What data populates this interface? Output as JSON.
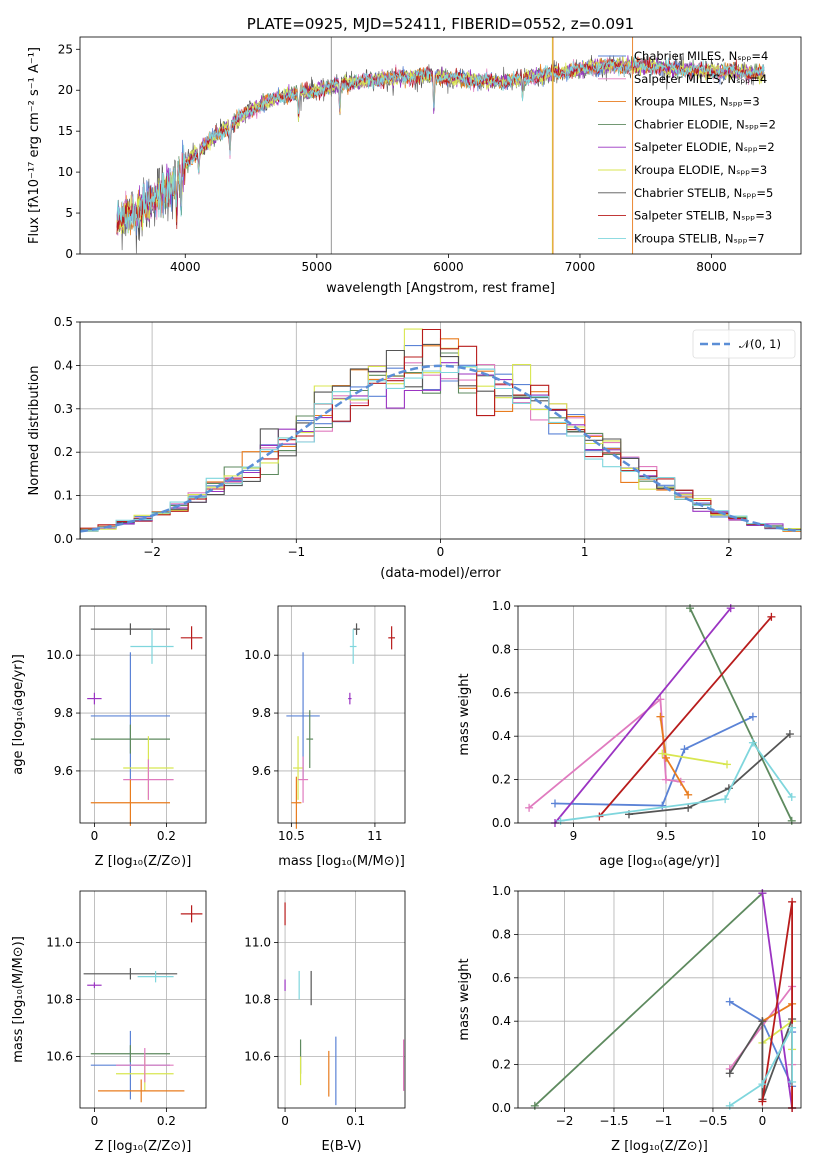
{
  "chart_data": [
    {
      "id": "spectrum",
      "type": "line",
      "title": "PLATE=0925, MJD=52411, FIBERID=0552, z=0.091",
      "xlabel": "wavelength [Angstrom, rest frame]",
      "ylabel": "Flux [fλ10⁻¹⁷ erg cm⁻² s⁻¹ A⁻¹]",
      "xlim": [
        3200,
        8680
      ],
      "ylim": [
        0,
        26.5
      ],
      "xticks": [
        4000,
        5000,
        6000,
        7000,
        8000
      ],
      "yticks": [
        0,
        5,
        10,
        15,
        20,
        25
      ],
      "grid": false,
      "legend_position": "top-right",
      "series": [
        {
          "name": "Chabrier MILES, Nₛₚₚ=4",
          "color": "#5b83d6"
        },
        {
          "name": "Salpeter MILES, Nₛₚₚ=4",
          "color": "#e07bbf"
        },
        {
          "name": "Kroupa MILES, Nₛₚₚ=3",
          "color": "#e87c1e"
        },
        {
          "name": "Chabrier ELODIE, Nₛₚₚ=2",
          "color": "#5e8a5f"
        },
        {
          "name": "Salpeter ELODIE, Nₛₚₚ=2",
          "color": "#9b34c2"
        },
        {
          "name": "Kroupa ELODIE, Nₛₚₚ=3",
          "color": "#d8e650"
        },
        {
          "name": "Chabrier STELIB, Nₛₚₚ=5",
          "color": "#555555"
        },
        {
          "name": "Salpeter STELIB, Nₛₚₚ=3",
          "color": "#b81c1c"
        },
        {
          "name": "Kroupa STELIB, Nₛₚₚ=7",
          "color": "#7fd6dd"
        }
      ],
      "continuum": {
        "x": [
          3500,
          3700,
          3900,
          4000,
          4200,
          4400,
          4600,
          4800,
          5000,
          5200,
          5400,
          5600,
          5800,
          6000,
          6200,
          6400,
          6600,
          6800,
          7000,
          7200,
          7400,
          7600,
          7800,
          8000,
          8200,
          8400
        ],
        "y": [
          4,
          6,
          8.5,
          11,
          14,
          16.5,
          18.5,
          19.5,
          20,
          20.8,
          21.2,
          21.5,
          21.8,
          21.5,
          21.2,
          21,
          21.5,
          22,
          22.5,
          23,
          23,
          22.8,
          22.5,
          22.3,
          22.2,
          22
        ]
      }
    },
    {
      "id": "residuals",
      "type": "histogram",
      "xlabel": "(data-model)/error",
      "ylabel": "Normed distribution",
      "xlim": [
        -2.5,
        2.5
      ],
      "ylim": [
        0,
        0.5
      ],
      "xticks": [
        -2,
        -1,
        0,
        1,
        2
      ],
      "yticks": [
        0.0,
        0.1,
        0.2,
        0.3,
        0.4,
        0.5
      ],
      "grid": true,
      "legend": "𝒩(0, 1)",
      "legend_position": "top-right",
      "reference_curve": {
        "type": "gaussian",
        "mean": 0,
        "sigma": 1,
        "color": "#5b8ed6"
      }
    },
    {
      "id": "age-vs-Z",
      "type": "scatter",
      "xlabel": "Z [log₁₀(Z/Z⊙)]",
      "ylabel": "age  [log₁₀(age/yr)]",
      "xlim": [
        -0.04,
        0.31
      ],
      "ylim": [
        9.42,
        10.17
      ],
      "xticks": [
        0.0,
        0.2
      ],
      "yticks": [
        9.6,
        9.8,
        10.0
      ],
      "grid": true,
      "points": [
        {
          "x": 0.1,
          "y": 10.09,
          "xerr": 0.11,
          "yerr": 0.02,
          "color": "#555555"
        },
        {
          "x": 0.27,
          "y": 10.06,
          "xerr": 0.03,
          "yerr": 0.04,
          "color": "#b81c1c"
        },
        {
          "x": 0.16,
          "y": 10.03,
          "xerr": 0.06,
          "yerr": 0.06,
          "color": "#7fd6dd"
        },
        {
          "x": 0.0,
          "y": 9.85,
          "xerr": 0.02,
          "yerr": 0.02,
          "color": "#9b34c2"
        },
        {
          "x": 0.1,
          "y": 9.79,
          "xerr": 0.11,
          "yerr": 0.22,
          "color": "#5b83d6"
        },
        {
          "x": 0.1,
          "y": 9.71,
          "xerr": 0.11,
          "yerr": 0.05,
          "color": "#5e8a5f"
        },
        {
          "x": 0.15,
          "y": 9.61,
          "xerr": 0.07,
          "yerr": 0.11,
          "color": "#d8e650"
        },
        {
          "x": 0.15,
          "y": 9.57,
          "xerr": 0.07,
          "yerr": 0.07,
          "color": "#e07bbf"
        },
        {
          "x": 0.1,
          "y": 9.49,
          "xerr": 0.11,
          "yerr": 0.08,
          "color": "#e87c1e"
        }
      ]
    },
    {
      "id": "age-vs-mass",
      "type": "scatter",
      "xlabel": "mass [log₁₀(M/M⊙)]",
      "ylim": [
        9.42,
        10.17
      ],
      "xlim": [
        10.42,
        11.18
      ],
      "xticks": [
        10.5,
        11.0
      ],
      "yticks": [
        9.6,
        9.8,
        10.0
      ],
      "grid": true,
      "points": [
        {
          "x": 10.89,
          "y": 10.09,
          "xerr": 0.02,
          "yerr": 0.02,
          "color": "#555555"
        },
        {
          "x": 11.1,
          "y": 10.06,
          "xerr": 0.02,
          "yerr": 0.04,
          "color": "#b81c1c"
        },
        {
          "x": 10.87,
          "y": 10.03,
          "xerr": 0.02,
          "yerr": 0.06,
          "color": "#7fd6dd"
        },
        {
          "x": 10.85,
          "y": 9.85,
          "xerr": 0.01,
          "yerr": 0.02,
          "color": "#9b34c2"
        },
        {
          "x": 10.57,
          "y": 9.79,
          "xerr": 0.1,
          "yerr": 0.22,
          "color": "#5b83d6"
        },
        {
          "x": 10.61,
          "y": 9.71,
          "xerr": 0.02,
          "yerr": 0.1,
          "color": "#5e8a5f"
        },
        {
          "x": 10.54,
          "y": 9.61,
          "xerr": 0.03,
          "yerr": 0.11,
          "color": "#d8e650"
        },
        {
          "x": 10.57,
          "y": 9.57,
          "xerr": 0.03,
          "yerr": 0.08,
          "color": "#e07bbf"
        },
        {
          "x": 10.53,
          "y": 9.49,
          "xerr": 0.03,
          "yerr": 0.09,
          "color": "#e87c1e"
        }
      ]
    },
    {
      "id": "massweight-vs-age",
      "type": "line",
      "xlabel": "age  [log₁₀(age/yr)]",
      "ylabel": "mass weight",
      "xlim": [
        8.7,
        10.23
      ],
      "ylim": [
        0,
        1
      ],
      "xticks": [
        9.0,
        9.5,
        10.0
      ],
      "yticks": [
        0.0,
        0.2,
        0.4,
        0.6,
        0.8,
        1.0
      ],
      "grid": true,
      "series": [
        {
          "color": "#5b83d6",
          "x": [
            8.9,
            9.48,
            9.6,
            9.97
          ],
          "y": [
            0.09,
            0.08,
            0.34,
            0.49
          ]
        },
        {
          "color": "#e07bbf",
          "x": [
            8.76,
            9.47,
            9.5,
            9.58
          ],
          "y": [
            0.07,
            0.57,
            0.2,
            0.19
          ]
        },
        {
          "color": "#e87c1e",
          "x": [
            9.47,
            9.5,
            9.62
          ],
          "y": [
            0.49,
            0.3,
            0.13
          ]
        },
        {
          "color": "#5e8a5f",
          "x": [
            9.63,
            10.18
          ],
          "y": [
            0.99,
            0.01
          ]
        },
        {
          "color": "#9b34c2",
          "x": [
            8.9,
            9.85
          ],
          "y": [
            0.0,
            0.99
          ]
        },
        {
          "color": "#d8e650",
          "x": [
            9.48,
            9.83
          ],
          "y": [
            0.32,
            0.27
          ]
        },
        {
          "color": "#555555",
          "x": [
            9.3,
            9.62,
            9.84,
            10.17
          ],
          "y": [
            0.04,
            0.07,
            0.16,
            0.41
          ]
        },
        {
          "color": "#b81c1c",
          "x": [
            9.14,
            10.07
          ],
          "y": [
            0.03,
            0.95
          ]
        },
        {
          "color": "#7fd6dd",
          "x": [
            8.93,
            9.82,
            9.97,
            10.18
          ],
          "y": [
            0.01,
            0.11,
            0.37,
            0.12
          ]
        }
      ]
    },
    {
      "id": "mass-vs-Z",
      "type": "scatter",
      "xlabel": "Z [log₁₀(Z/Z⊙)]",
      "ylabel": "mass [log₁₀(M/M⊙)]",
      "xlim": [
        -0.04,
        0.31
      ],
      "ylim": [
        10.42,
        11.18
      ],
      "xticks": [
        0.0,
        0.2
      ],
      "yticks": [
        10.6,
        10.8,
        11.0
      ],
      "grid": true,
      "points": [
        {
          "x": 0.27,
          "y": 11.1,
          "xerr": 0.03,
          "yerr": 0.03,
          "color": "#b81c1c"
        },
        {
          "x": 0.1,
          "y": 10.89,
          "xerr": 0.13,
          "yerr": 0.02,
          "color": "#555555"
        },
        {
          "x": 0.17,
          "y": 10.88,
          "xerr": 0.05,
          "yerr": 0.02,
          "color": "#7fd6dd"
        },
        {
          "x": 0.0,
          "y": 10.85,
          "xerr": 0.02,
          "yerr": 0.01,
          "color": "#9b34c2"
        },
        {
          "x": 0.1,
          "y": 10.57,
          "xerr": 0.11,
          "yerr": 0.12,
          "color": "#5b83d6"
        },
        {
          "x": 0.1,
          "y": 10.61,
          "xerr": 0.11,
          "yerr": 0.03,
          "color": "#5e8a5f"
        },
        {
          "x": 0.14,
          "y": 10.54,
          "xerr": 0.08,
          "yerr": 0.06,
          "color": "#d8e650"
        },
        {
          "x": 0.14,
          "y": 10.57,
          "xerr": 0.08,
          "yerr": 0.06,
          "color": "#e07bbf"
        },
        {
          "x": 0.13,
          "y": 10.48,
          "xerr": 0.12,
          "yerr": 0.04,
          "color": "#e87c1e"
        }
      ]
    },
    {
      "id": "mass-vs-ebv",
      "type": "scatter",
      "xlabel": "E(B-V)",
      "xlim": [
        -0.01,
        0.17
      ],
      "ylim": [
        10.42,
        11.18
      ],
      "xticks": [
        0.0,
        0.1
      ],
      "yticks": [
        10.6,
        10.8,
        11.0
      ],
      "grid": true,
      "points": [
        {
          "x": 0.0,
          "y": 11.1,
          "yerr": 0.04,
          "color": "#b81c1c"
        },
        {
          "x": 0.037,
          "y": 10.84,
          "yerr": 0.06,
          "color": "#555555"
        },
        {
          "x": 0.02,
          "y": 10.85,
          "yerr": 0.05,
          "color": "#7fd6dd"
        },
        {
          "x": 0.0,
          "y": 10.85,
          "yerr": 0.02,
          "color": "#9b34c2"
        },
        {
          "x": 0.072,
          "y": 10.55,
          "yerr": 0.12,
          "color": "#5b83d6"
        },
        {
          "x": 0.022,
          "y": 10.6,
          "yerr": 0.06,
          "color": "#5e8a5f"
        },
        {
          "x": 0.022,
          "y": 10.55,
          "yerr": 0.05,
          "color": "#d8e650"
        },
        {
          "x": 0.168,
          "y": 10.57,
          "yerr": 0.09,
          "color": "#e07bbf"
        },
        {
          "x": 0.062,
          "y": 10.54,
          "yerr": 0.08,
          "color": "#e87c1e"
        }
      ]
    },
    {
      "id": "massweight-vs-Z",
      "type": "line",
      "xlabel": "Z [log₁₀(Z/Z⊙)]",
      "ylabel": "mass weight",
      "xlim": [
        -2.47,
        0.39
      ],
      "ylim": [
        0,
        1
      ],
      "xticks": [
        -2.0,
        -1.5,
        -1.0,
        -0.5,
        0.0
      ],
      "yticks": [
        0.0,
        0.2,
        0.4,
        0.6,
        0.8,
        1.0
      ],
      "grid": true,
      "series": [
        {
          "color": "#5b83d6",
          "x": [
            -0.33,
            0.0,
            0.3,
            0.3
          ],
          "y": [
            0.49,
            0.4,
            0.1,
            0.35
          ]
        },
        {
          "color": "#e07bbf",
          "x": [
            -0.33,
            0.3,
            0.3
          ],
          "y": [
            0.18,
            0.56,
            0.2
          ]
        },
        {
          "color": "#e87c1e",
          "x": [
            0.0,
            0.3,
            0.3
          ],
          "y": [
            0.4,
            0.48,
            0.0
          ]
        },
        {
          "color": "#5e8a5f",
          "x": [
            -2.3,
            0.0
          ],
          "y": [
            0.01,
            0.99
          ]
        },
        {
          "color": "#9b34c2",
          "x": [
            0.0,
            0.3
          ],
          "y": [
            0.99,
            0.0
          ]
        },
        {
          "color": "#d8e650",
          "x": [
            0.0,
            0.3,
            0.3
          ],
          "y": [
            0.3,
            0.4,
            0.27
          ]
        },
        {
          "color": "#555555",
          "x": [
            -0.33,
            0.0,
            0.0,
            0.3
          ],
          "y": [
            0.16,
            0.4,
            0.04,
            0.41
          ]
        },
        {
          "color": "#b81c1c",
          "x": [
            0.0,
            0.3,
            0.3
          ],
          "y": [
            0.03,
            0.95,
            0.0
          ]
        },
        {
          "color": "#7fd6dd",
          "x": [
            -0.33,
            0.0,
            0.3,
            0.3
          ],
          "y": [
            0.01,
            0.11,
            0.37,
            0.12
          ]
        }
      ]
    }
  ]
}
